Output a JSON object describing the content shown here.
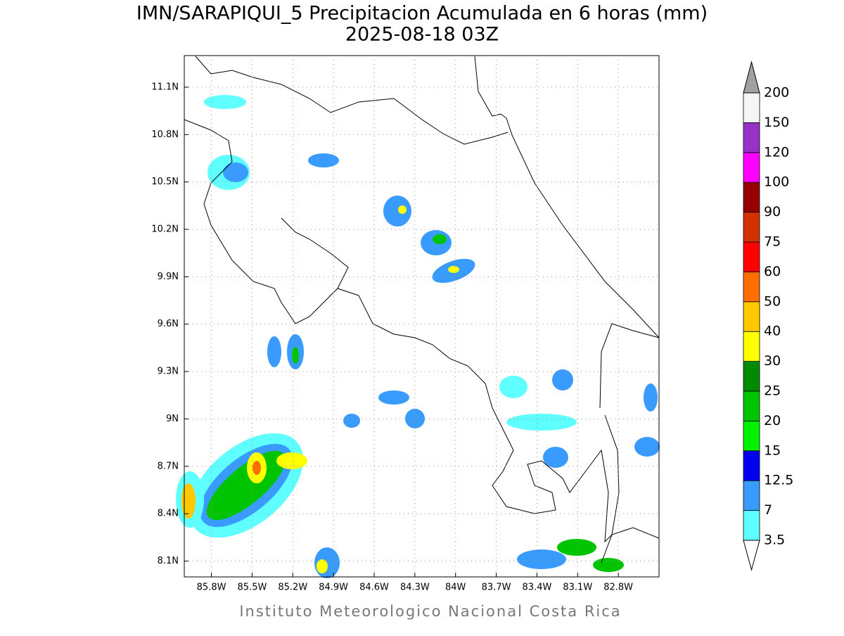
{
  "title": "IMN/SARAPIQUI_5 Precipitacion Acumulada en 6 horas (mm)",
  "subtitle": "2025-08-18 03Z",
  "footer": "Instituto Meteorologico Nacional Costa Rica",
  "map": {
    "xlim": [
      -86.0,
      -82.5
    ],
    "ylim": [
      8.0,
      11.3
    ],
    "grid": true,
    "xticks": [
      {
        "value": -85.8,
        "label": "85.8W"
      },
      {
        "value": -85.5,
        "label": "85.5W"
      },
      {
        "value": -85.2,
        "label": "85.2W"
      },
      {
        "value": -84.9,
        "label": "84.9W"
      },
      {
        "value": -84.6,
        "label": "84.6W"
      },
      {
        "value": -84.3,
        "label": "84.3W"
      },
      {
        "value": -84.0,
        "label": "84W"
      },
      {
        "value": -83.7,
        "label": "83.7W"
      },
      {
        "value": -83.4,
        "label": "83.4W"
      },
      {
        "value": -83.1,
        "label": "83.1W"
      },
      {
        "value": -82.8,
        "label": "82.8W"
      }
    ],
    "yticks": [
      {
        "value": 8.1,
        "label": "8.1N"
      },
      {
        "value": 8.4,
        "label": "8.4N"
      },
      {
        "value": 8.7,
        "label": "8.7N"
      },
      {
        "value": 9.0,
        "label": "9N"
      },
      {
        "value": 9.3,
        "label": "9.3N"
      },
      {
        "value": 9.6,
        "label": "9.6N"
      },
      {
        "value": 9.9,
        "label": "9.9N"
      },
      {
        "value": 10.2,
        "label": "10.2N"
      },
      {
        "value": 10.5,
        "label": "10.5N"
      },
      {
        "value": 10.8,
        "label": "10.8N"
      },
      {
        "value": 11.1,
        "label": "11.1N"
      }
    ]
  },
  "colorbar": {
    "levels": [
      3.5,
      7,
      12.5,
      15,
      20,
      25,
      30,
      40,
      50,
      60,
      75,
      90,
      100,
      120,
      150,
      200
    ],
    "colors": [
      "#5fffff",
      "#3a9bff",
      "#0000f0",
      "#00f000",
      "#00c400",
      "#008a00",
      "#ffff00",
      "#ffc800",
      "#ff6e00",
      "#ff0000",
      "#d23200",
      "#960000",
      "#ff00ff",
      "#9632c8",
      "#f5f5f5"
    ],
    "under_color": "#ffffff",
    "over_color": "#a0a0a0"
  }
}
